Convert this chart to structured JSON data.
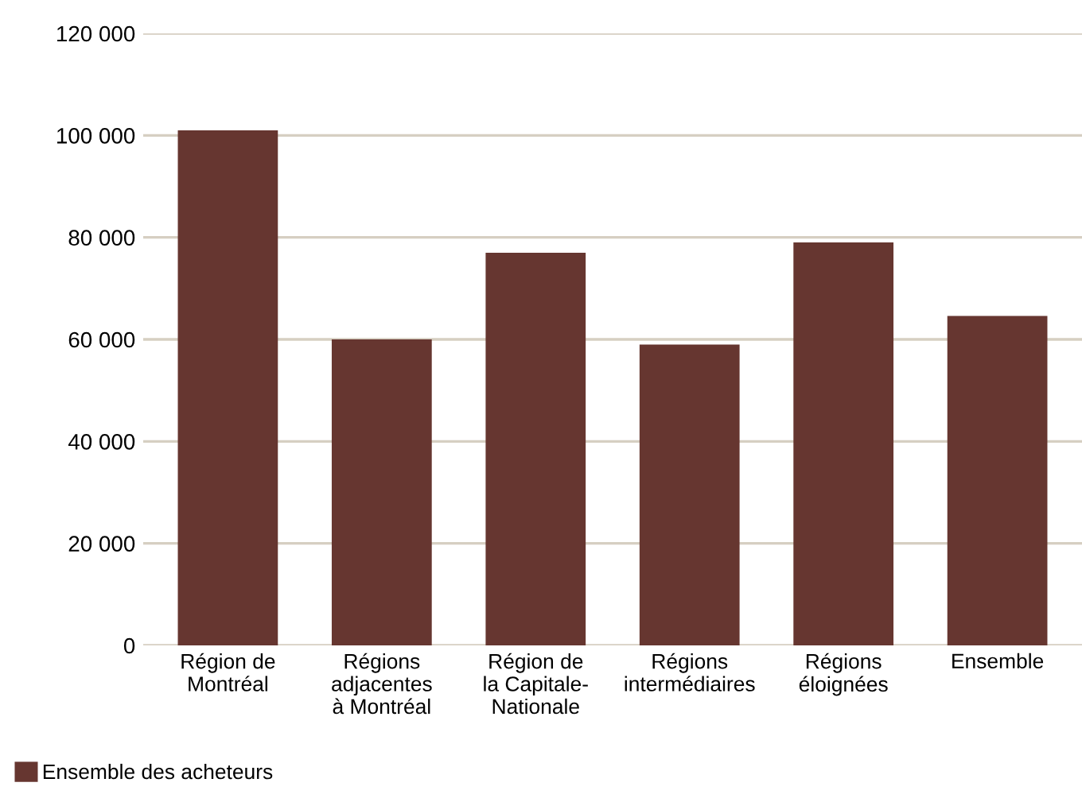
{
  "chart_data": {
    "type": "bar",
    "categories": [
      "Région de\nMontréal",
      "Régions\nadjacentes\nà Montréal",
      "Région de\nla Capitale-\nNationale",
      "Régions\nintermédiaires",
      "Régions\néloignées",
      "Ensemble"
    ],
    "series": [
      {
        "name": "Ensemble des acheteurs",
        "color": "#663630",
        "values": [
          101000,
          60000,
          77000,
          59000,
          79000,
          64600
        ]
      }
    ],
    "ylim": [
      0,
      120000
    ],
    "yticks": [
      {
        "value": 0,
        "label": "0"
      },
      {
        "value": 20000,
        "label": "20 000"
      },
      {
        "value": 40000,
        "label": "40 000"
      },
      {
        "value": 60000,
        "label": "60 000"
      },
      {
        "value": 80000,
        "label": "80 000"
      },
      {
        "value": 100000,
        "label": "100 000"
      },
      {
        "value": 120000,
        "label": "120 000"
      }
    ],
    "grid": "y",
    "legend": "bottom left"
  }
}
